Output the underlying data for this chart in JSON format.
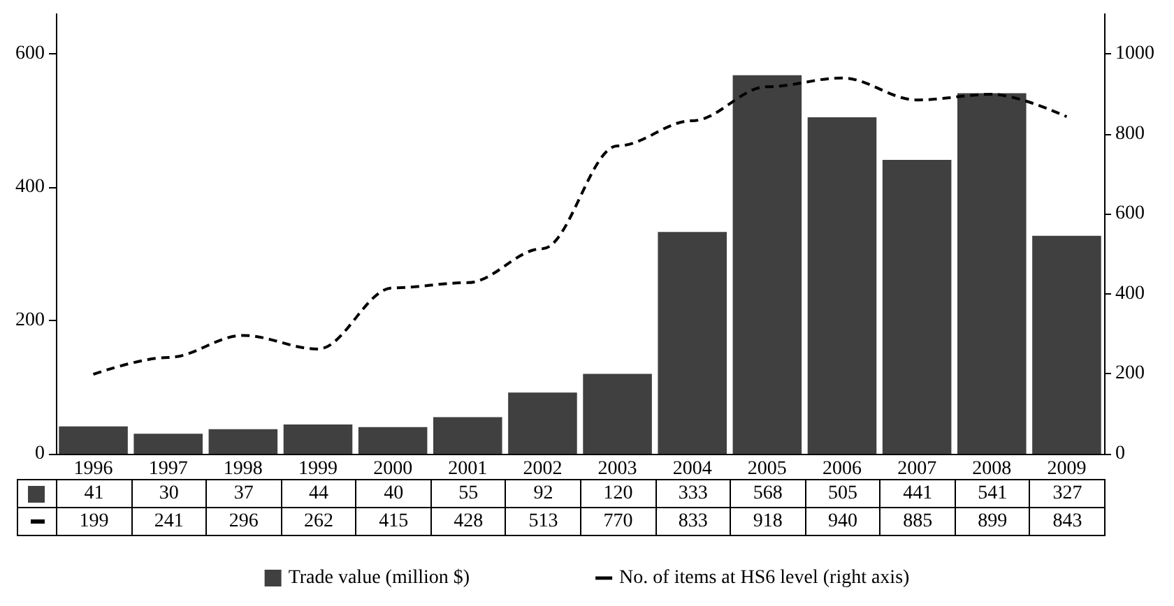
{
  "chart_data": {
    "type": "bar",
    "categories": [
      "1996",
      "1997",
      "1998",
      "1999",
      "2000",
      "2001",
      "2002",
      "2003",
      "2004",
      "2005",
      "2006",
      "2007",
      "2008",
      "2009"
    ],
    "series": [
      {
        "name": "Trade value (million $)",
        "color": "#404040",
        "values": [
          41,
          30,
          37,
          44,
          40,
          55,
          92,
          120,
          333,
          568,
          505,
          441,
          541,
          327
        ]
      },
      {
        "name": "No. of items at HS6 level (right axis)",
        "type": "line",
        "axis": "y2",
        "color": "#000000",
        "line_style": "dashed",
        "marker": "none",
        "values": [
          199,
          241,
          296,
          262,
          415,
          428,
          513,
          770,
          833,
          918,
          940,
          885,
          899,
          843
        ]
      }
    ],
    "ylim": [
      0,
      660
    ],
    "yticks": [
      0,
      200,
      400,
      600
    ],
    "y2lim": [
      0,
      1100
    ],
    "y2ticks": [
      0,
      200,
      400,
      600,
      800,
      1000
    ],
    "data_labels": true,
    "legend": "bottom"
  }
}
